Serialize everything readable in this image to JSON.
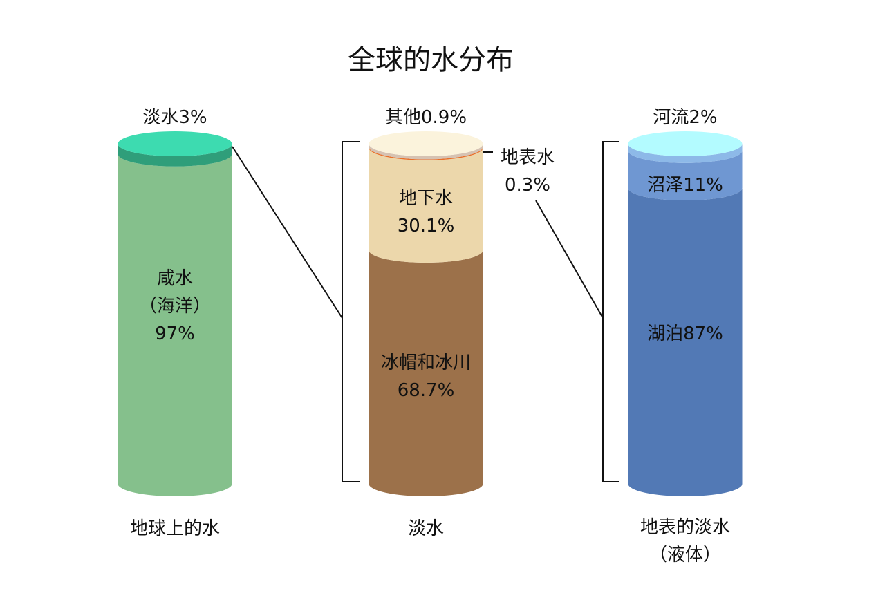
{
  "title": "全球的水分布",
  "chart_data": [
    {
      "type": "cylinder",
      "label": "地球上的水",
      "values": [
        97,
        3
      ],
      "value_labels": [
        "咸水\n（海洋）\n97%",
        "淡水3%"
      ],
      "colors": [
        "#85c08c",
        "#2f9e7a"
      ],
      "cap_color": "#3ddbb0"
    },
    {
      "type": "cylinder",
      "label": "淡水",
      "values": [
        68.7,
        30.1,
        0.3,
        0.9
      ],
      "value_labels": [
        "冰帽和冰川\n68.7%",
        "地下水\n30.1%",
        "地表水\n0.3%",
        "其他0.9%"
      ],
      "colors": [
        "#9c714a",
        "#ecd7ab",
        "#e8702a",
        "#d6c2b2"
      ],
      "cap_color": "#fbf3dc"
    },
    {
      "type": "cylinder",
      "label": "地表的淡水\n（液体）",
      "values": [
        87,
        11,
        2
      ],
      "value_labels": [
        "湖泊87%",
        "沼泽11%",
        "河流2%"
      ],
      "colors": [
        "#5279b5",
        "#6f97d2",
        "#8db9e8"
      ],
      "cap_color": "#b3fbff"
    }
  ]
}
